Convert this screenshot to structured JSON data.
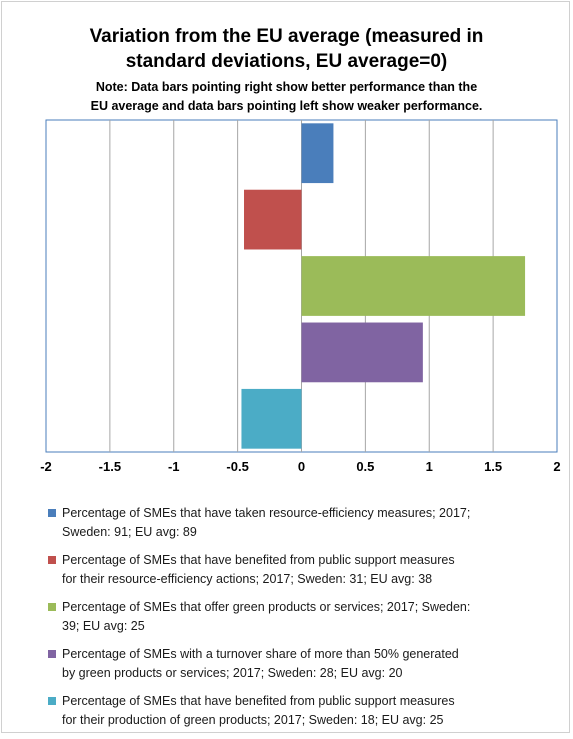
{
  "title_line1": "Variation from the EU average (measured in",
  "title_line2": "standard deviations, EU average=0)",
  "note_line1": "Note: Data bars pointing right show better performance than the",
  "note_line2": "EU average and data bars pointing left show weaker performance.",
  "chart_data": {
    "type": "bar",
    "orientation": "horizontal",
    "xlim": [
      -2,
      2
    ],
    "x_ticks": [
      "-2",
      "-1.5",
      "-1",
      "-0.5",
      "0",
      "0.5",
      "1",
      "1.5",
      "2"
    ],
    "grid": true,
    "legend_position": "bottom",
    "series": [
      {
        "color": "#4a7ebb",
        "value": 0.25,
        "label_lines": [
          "Percentage of SMEs that have taken resource-efficiency measures; 2017;",
          "Sweden: 91; EU avg: 89"
        ]
      },
      {
        "color": "#c0504d",
        "value": -0.45,
        "label_lines": [
          "Percentage of SMEs that have benefited from public support measures",
          "for their resource-efficiency actions; 2017; Sweden: 31; EU avg: 38"
        ]
      },
      {
        "color": "#9bbb59",
        "value": 1.75,
        "label_lines": [
          "Percentage of SMEs that offer green products or services; 2017; Sweden:",
          "39; EU avg: 25"
        ]
      },
      {
        "color": "#8064a2",
        "value": 0.95,
        "label_lines": [
          "Percentage of SMEs with a turnover share of more than 50% generated",
          "by green products or services; 2017; Sweden: 28; EU avg: 20"
        ]
      },
      {
        "color": "#4bacc6",
        "value": -0.47,
        "label_lines": [
          "Percentage of SMEs that have benefited from public support measures",
          "for their production of green products; 2017; Sweden: 18; EU avg: 25"
        ]
      }
    ]
  }
}
